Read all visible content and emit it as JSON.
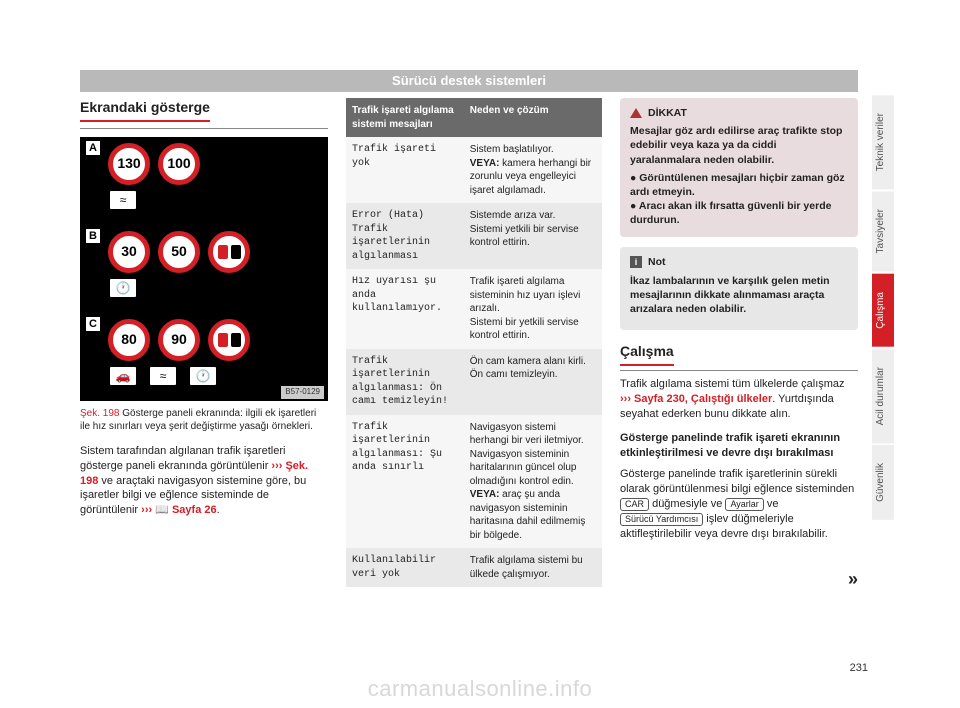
{
  "header": {
    "title": "Sürücü destek sistemleri"
  },
  "col1": {
    "heading": "Ekrandaki gösterge",
    "figure": {
      "panels": [
        {
          "label": "A",
          "speeds": [
            "130",
            "100"
          ],
          "no_overtake": false,
          "sub_icons": 1
        },
        {
          "label": "B",
          "speeds": [
            "30",
            "50"
          ],
          "no_overtake": true,
          "sub_icons": 1
        },
        {
          "label": "C",
          "speeds": [
            "80",
            "90"
          ],
          "no_overtake": true,
          "sub_icons": 3
        }
      ],
      "code": "B57-0129",
      "colors": {
        "ring": "#d31f26",
        "black": "#000000",
        "sub_bg": "#ffffff",
        "car_red": "#d31f26",
        "car_black": "#000000"
      }
    },
    "caption_num": "Şek. 198",
    "caption_text": "  Gösterge paneli ekranında: ilgili ek işaretleri ile hız sınırları veya şerit değiştirme yasağı örnekleri.",
    "body_before": "Sistem tarafından algılanan trafik işaretleri gösterge paneli ekranında görüntülenir ",
    "body_ref1": "››› Şek. 198",
    "body_mid": " ve araçtaki navigasyon sistemine göre, bu işaretler bilgi ve eğlence sisteminde de görüntülenir ",
    "body_ref2_prefix": "››› ",
    "body_ref2_icon": "📖",
    "body_ref2": " Sayfa 26",
    "body_after": "."
  },
  "table": {
    "head_left": "Trafik işareti algılama sistemi mesajları",
    "head_right": "Neden ve çözüm",
    "rows": [
      {
        "l": "Trafik işareti yok",
        "r": "Sistem başlatılıyor.\nVEYA: kamera herhangi bir zorunlu veya engelleyici işaret algılamadı."
      },
      {
        "l": "Error (Hata) Trafik işaretlerinin algılanması",
        "r": "Sistemde arıza var.\nSistemi yetkili bir servise kontrol ettirin."
      },
      {
        "l": "Hız uyarısı şu anda kullanılamıyor.",
        "r": "Trafik işareti algılama sisteminin hız uyarı işlevi arızalı.\nSistemi bir yetkili servise kontrol ettirin."
      },
      {
        "l": "Trafik işaretlerinin algılanması: Ön camı temizleyin!",
        "r": "Ön cam kamera alanı kirli.\nÖn camı temizleyin."
      },
      {
        "l": "Trafik işaretlerinin algılanması: Şu anda sınırlı",
        "r": "Navigasyon sistemi herhangi bir veri iletmiyor.\nNavigasyon sisteminin haritalarının güncel olup olmadığını kontrol edin.\nVEYA: araç şu anda navigasyon sisteminin haritasına dahil edilmemiş bir bölgede."
      },
      {
        "l": "Kullanılabilir veri yok",
        "r": "Trafik algılama sistemi bu ülkede çalışmıyor."
      }
    ]
  },
  "col3": {
    "warn": {
      "title": "DİKKAT",
      "lead": "Mesajlar göz ardı edilirse araç trafikte stop edebilir veya kaza ya da ciddi yaralanmalara neden olabilir.",
      "items": [
        "Görüntülenen mesajları hiçbir zaman göz ardı etmeyin.",
        "Aracı akan ilk fırsatta güvenli bir yerde durdurun."
      ]
    },
    "note": {
      "title": "Not",
      "text": "İkaz lambalarının ve karşılık gelen metin mesajlarının dikkate alınmaması araçta arızalara neden olabilir."
    },
    "heading": "Çalışma",
    "p1_a": "Trafik algılama sistemi tüm ülkelerde çalışmaz ",
    "p1_ref": "››› Sayfa 230, Çalıştığı ülkeler",
    "p1_b": ". Yurtdışında seyahat ederken bunu dikkate alın.",
    "sub": "Gösterge panelinde trafik işareti ekranının etkinleştirilmesi ve devre dışı bırakılması",
    "p2_a": "Gösterge panelinde trafik işaretlerinin sürekli olarak görüntülenmesi bilgi eğlence sisteminden ",
    "key1": "CAR",
    "p2_b": " düğmesiyle ve ",
    "key2": "Ayarlar",
    "p2_c": " ve ",
    "key3": "Sürücü Yardımcısı",
    "p2_d": " işlev düğmeleriyle aktifleştirilebilir veya devre dışı bırakılabilir.",
    "cont": "»"
  },
  "tabs": [
    {
      "label": "Teknik veriler",
      "active": false
    },
    {
      "label": "Tavsiyeler",
      "active": false
    },
    {
      "label": "Çalışma",
      "active": true
    },
    {
      "label": "Acil durumlar",
      "active": false
    },
    {
      "label": "Güvenlik",
      "active": false
    }
  ],
  "page_number": "231",
  "watermark": "carmanualsonline.info",
  "colors": {
    "accent": "#d31f26",
    "header_bg": "#b9b9b9",
    "warn_bg": "#e9dcde",
    "note_bg": "#e7e7e7"
  }
}
